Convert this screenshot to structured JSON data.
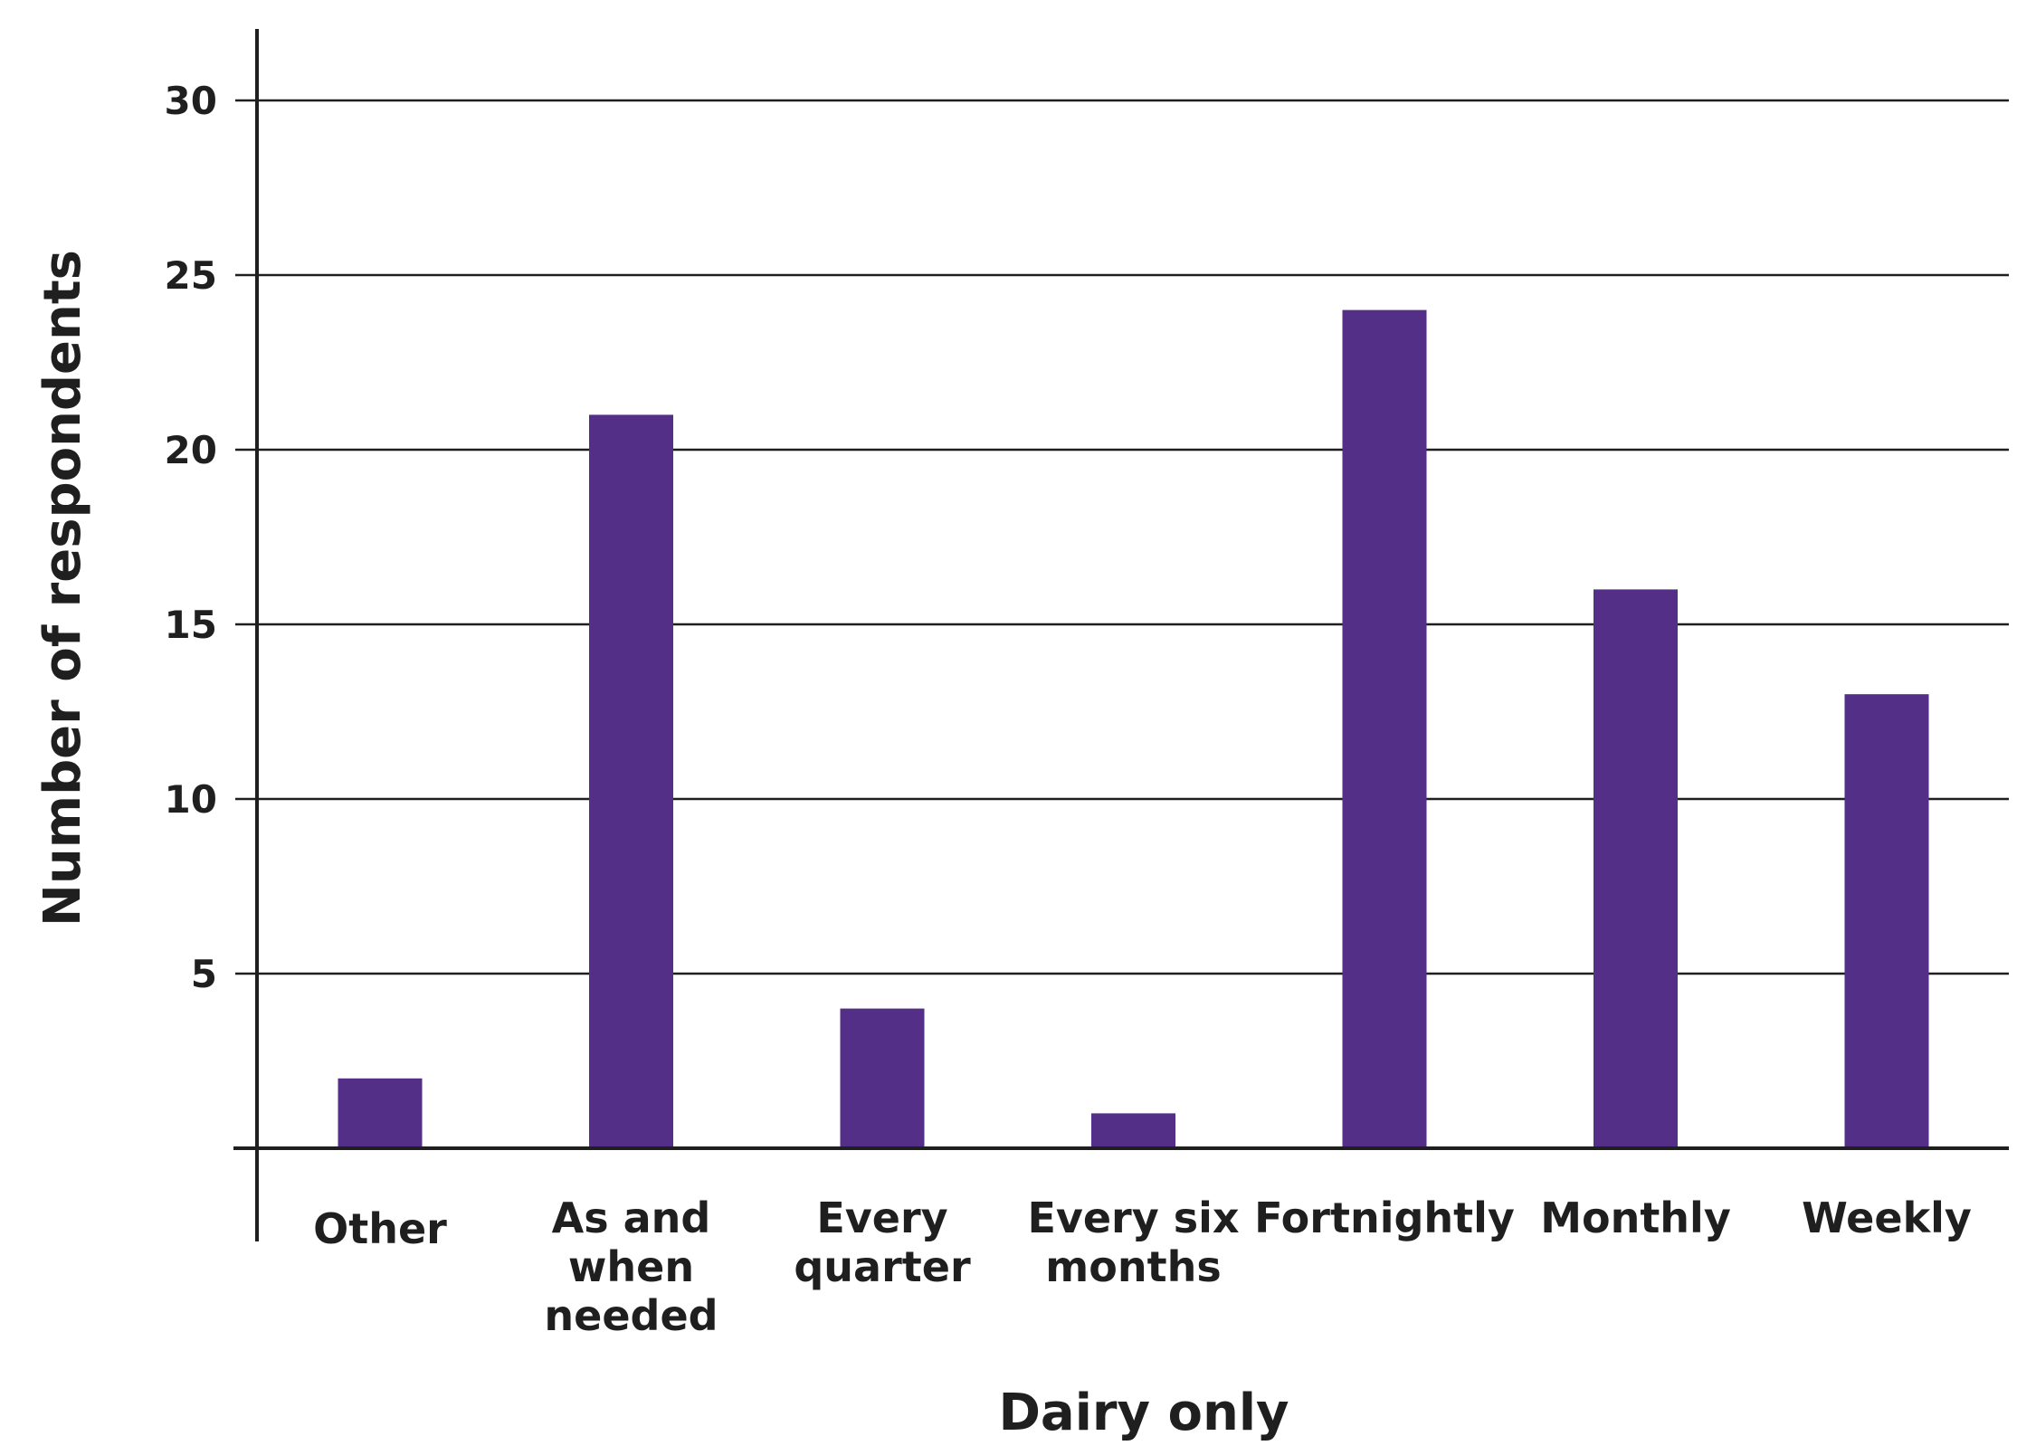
{
  "chart_data": {
    "type": "bar",
    "title": "",
    "xlabel": "Dairy only",
    "ylabel": "Number of respondents",
    "categories": [
      [
        "Other"
      ],
      [
        "As and",
        "when",
        "needed"
      ],
      [
        "Every",
        "quarter"
      ],
      [
        "Every six",
        "months"
      ],
      [
        "Fortnightly"
      ],
      [
        "Monthly"
      ],
      [
        "Weekly"
      ]
    ],
    "values": [
      2,
      21,
      4,
      1,
      24,
      16,
      13
    ],
    "ylim": [
      0,
      30
    ],
    "yticks": [
      5,
      10,
      15,
      20,
      25,
      30
    ],
    "ytick_labels": [
      "5",
      "10",
      "15",
      "20",
      "25",
      "30"
    ],
    "grid": true,
    "legend": "none",
    "colors": {
      "bar": "#532f87",
      "axis": "#1f1f1f",
      "text": "#1f1f1f"
    }
  }
}
